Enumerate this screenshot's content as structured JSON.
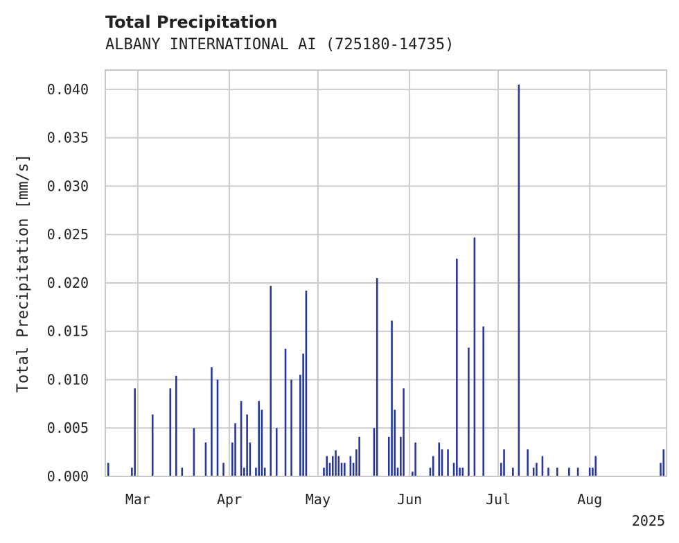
{
  "chart_data": {
    "type": "bar",
    "title": "Total Precipitation",
    "subtitle": "ALBANY INTERNATIONAL AI (725180-14735)",
    "ylabel": "Total Precipitation [mm/s]",
    "xlabel": "",
    "ylim": [
      0,
      0.042
    ],
    "yticks": [
      "0.000",
      "0.005",
      "0.010",
      "0.015",
      "0.020",
      "0.025",
      "0.030",
      "0.035",
      "0.040"
    ],
    "xticks": [
      {
        "label": "Mar",
        "date": "2025-03-01"
      },
      {
        "label": "Apr",
        "date": "2025-04-01"
      },
      {
        "label": "May",
        "date": "2025-05-01"
      },
      {
        "label": "Jun",
        "date": "2025-06-01"
      },
      {
        "label": "Jul",
        "date": "2025-07-01"
      },
      {
        "label": "Aug",
        "date": "2025-08-01"
      }
    ],
    "year_label": "2025",
    "xlim": [
      "2025-02-18",
      "2025-08-27"
    ],
    "grid": true,
    "color": "#26369a",
    "x": [
      "2025-02-19",
      "2025-02-27",
      "2025-02-28",
      "2025-03-06",
      "2025-03-12",
      "2025-03-14",
      "2025-03-16",
      "2025-03-20",
      "2025-03-24",
      "2025-03-26",
      "2025-03-28",
      "2025-03-30",
      "2025-04-02",
      "2025-04-03",
      "2025-04-05",
      "2025-04-06",
      "2025-04-07",
      "2025-04-08",
      "2025-04-10",
      "2025-04-11",
      "2025-04-12",
      "2025-04-13",
      "2025-04-15",
      "2025-04-17",
      "2025-04-20",
      "2025-04-22",
      "2025-04-25",
      "2025-04-26",
      "2025-04-27",
      "2025-05-03",
      "2025-05-04",
      "2025-05-05",
      "2025-05-06",
      "2025-05-07",
      "2025-05-08",
      "2025-05-09",
      "2025-05-10",
      "2025-05-12",
      "2025-05-13",
      "2025-05-14",
      "2025-05-15",
      "2025-05-20",
      "2025-05-21",
      "2025-05-25",
      "2025-05-26",
      "2025-05-27",
      "2025-05-28",
      "2025-05-29",
      "2025-05-30",
      "2025-06-02",
      "2025-06-03",
      "2025-06-08",
      "2025-06-09",
      "2025-06-11",
      "2025-06-12",
      "2025-06-14",
      "2025-06-16",
      "2025-06-17",
      "2025-06-18",
      "2025-06-19",
      "2025-06-21",
      "2025-06-23",
      "2025-06-26",
      "2025-07-02",
      "2025-07-03",
      "2025-07-06",
      "2025-07-08",
      "2025-07-11",
      "2025-07-13",
      "2025-07-14",
      "2025-07-16",
      "2025-07-18",
      "2025-07-21",
      "2025-07-25",
      "2025-07-28",
      "2025-08-01",
      "2025-08-02",
      "2025-08-03",
      "2025-08-25",
      "2025-08-26"
    ],
    "values": [
      0.0014,
      0.0009,
      0.0091,
      0.0064,
      0.0091,
      0.0104,
      0.0009,
      0.005,
      0.0035,
      0.0113,
      0.01,
      0.0014,
      0.0035,
      0.0055,
      0.0078,
      0.0009,
      0.0064,
      0.0035,
      0.0009,
      0.0078,
      0.0069,
      0.0009,
      0.0197,
      0.005,
      0.0132,
      0.01,
      0.0105,
      0.0127,
      0.0192,
      0.0009,
      0.0021,
      0.0014,
      0.0021,
      0.0027,
      0.0021,
      0.0014,
      0.0014,
      0.0021,
      0.0014,
      0.0028,
      0.0041,
      0.005,
      0.0205,
      0.0041,
      0.0161,
      0.0069,
      0.0009,
      0.0041,
      0.0091,
      0.0005,
      0.0035,
      0.0009,
      0.0021,
      0.0035,
      0.0028,
      0.0028,
      0.0014,
      0.0225,
      0.0009,
      0.0009,
      0.0133,
      0.0247,
      0.0155,
      0.0014,
      0.0028,
      0.0009,
      0.0405,
      0.0028,
      0.0009,
      0.0014,
      0.0021,
      0.0009,
      0.0009,
      0.0009,
      0.0009,
      0.0009,
      0.0009,
      0.0021,
      0.0014,
      0.0028
    ]
  }
}
